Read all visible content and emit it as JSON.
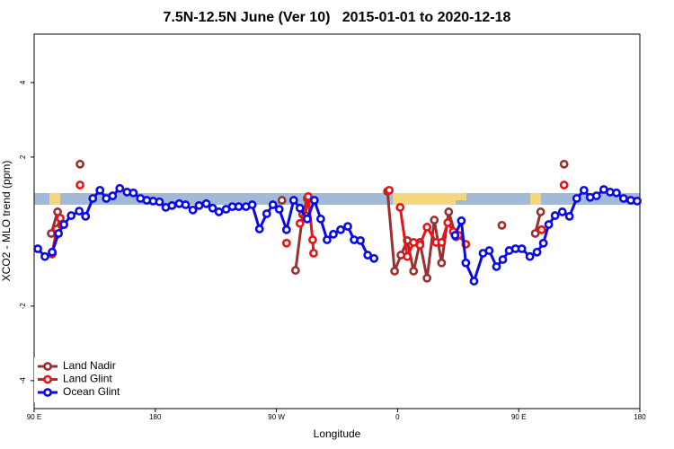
{
  "chart_data": {
    "type": "line",
    "title": "7.5N-12.5N June (Ver 10)   2015-01-01 to 2020-12-18",
    "xlabel": "Longitude",
    "ylabel": "XCO2 - MLO trend (ppm)",
    "xlim": [
      90,
      540
    ],
    "xticks": [
      {
        "value": 90,
        "label": "90 E"
      },
      180,
      {
        "value": 270,
        "label": "90 W"
      },
      {
        "value": 360,
        "label": "0"
      },
      {
        "value": 450,
        "label": "90 E"
      },
      {
        "value": 540,
        "label": "180"
      }
    ],
    "ylim": [
      -4.75,
      5.3
    ],
    "yticks": [
      -4,
      -2,
      2,
      4
    ],
    "legend": "lower left",
    "series": [
      {
        "name": "Land Nadir",
        "color": "#9b3030",
        "x": [
          102.7,
          107.4,
          null,
          124.1,
          null,
          274.1,
          null,
          284.2,
          289.5,
          292.9,
          null,
          352.5,
          357.8,
          362.5,
          367.2,
          371.9,
          376.6,
          381.9,
          387.3,
          392.7,
          398.0,
          403.4,
          null,
          437.5,
          null,
          462.3,
          466.3,
          null,
          483.7
        ],
        "values": [
          -0.05,
          0.53,
          null,
          1.81,
          null,
          0.84,
          null,
          -1.04,
          0.46,
          0.89,
          null,
          1.08,
          -1.06,
          -0.63,
          -0.24,
          -1.06,
          -0.29,
          -1.25,
          0.31,
          -0.84,
          0.53,
          -0.14,
          null,
          0.17,
          null,
          -0.05,
          0.53,
          null,
          1.81
        ]
      },
      {
        "name": "Land Glint",
        "color": "#e8141a",
        "x": [
          103.4,
          106.7,
          109.4,
          null,
          124.1,
          null,
          277.5,
          null,
          287.5,
          291.5,
          293.6,
          296.9,
          297.6,
          null,
          353.8,
          null,
          361.9,
          367.2,
          371.9,
          376.6,
          381.9,
          388.6,
          392.7,
          397.3,
          401.4,
          405.4,
          410.7,
          null,
          467.0,
          null,
          483.7
        ],
        "values": [
          -0.6,
          0.07,
          0.36,
          null,
          1.25,
          null,
          -0.31,
          null,
          0.22,
          0.43,
          0.94,
          -0.22,
          -0.58,
          null,
          1.11,
          null,
          0.65,
          -0.67,
          -0.29,
          -0.36,
          0.12,
          -0.29,
          -0.29,
          0.24,
          0.0,
          -0.1,
          -0.34,
          null,
          0.05,
          null,
          1.25
        ]
      },
      {
        "name": "Ocean Glint",
        "color": "#0a0ae6",
        "x": [
          92.7,
          98.0,
          103.4,
          108.1,
          112.1,
          117.5,
          123.5,
          128.2,
          133.6,
          138.9,
          143.6,
          148.3,
          153.6,
          159.0,
          163.7,
          169.0,
          173.7,
          178.4,
          183.1,
          187.8,
          192.4,
          197.8,
          202.5,
          207.9,
          212.5,
          217.9,
          222.6,
          227.3,
          232.6,
          237.3,
          242.0,
          247.4,
          252.0,
          257.4,
          262.8,
          267.4,
          272.1,
          277.5,
          282.8,
          287.5,
          292.9,
          298.2,
          302.9,
          307.6,
          312.3,
          317.7,
          323.0,
          327.7,
          332.4,
          337.8,
          342.5,
          null,
          402.7,
          407.4,
          410.7,
          416.8,
          423.5,
          428.1,
          433.5,
          438.2,
          442.9,
          447.6,
          452.3,
          458.3,
          463.6,
          468.3,
          472.3,
          477.0,
          482.4,
          487.7,
          493.1,
          498.5,
          503.1,
          507.8,
          513.2,
          517.9,
          522.6,
          527.9,
          533.3,
          538.0
        ],
        "values": [
          -0.46,
          -0.67,
          -0.55,
          -0.05,
          0.19,
          0.43,
          0.55,
          0.41,
          0.89,
          1.11,
          0.89,
          0.96,
          1.16,
          1.06,
          1.04,
          0.89,
          0.84,
          0.82,
          0.8,
          0.65,
          0.7,
          0.75,
          0.72,
          0.58,
          0.7,
          0.75,
          0.63,
          0.53,
          0.6,
          0.67,
          0.67,
          0.67,
          0.72,
          0.07,
          0.48,
          0.72,
          0.6,
          0.05,
          0.84,
          0.63,
          0.34,
          0.84,
          0.34,
          -0.22,
          -0.07,
          0.05,
          0.14,
          -0.22,
          -0.24,
          -0.63,
          -0.72,
          null,
          -0.1,
          0.29,
          -0.84,
          -1.33,
          -0.58,
          -0.51,
          -0.94,
          -0.75,
          -0.51,
          -0.46,
          -0.46,
          -0.67,
          -0.55,
          -0.31,
          0.19,
          0.43,
          0.53,
          0.41,
          0.89,
          1.11,
          0.92,
          0.96,
          1.13,
          1.06,
          1.04,
          0.89,
          0.84,
          0.82
        ]
      }
    ]
  }
}
